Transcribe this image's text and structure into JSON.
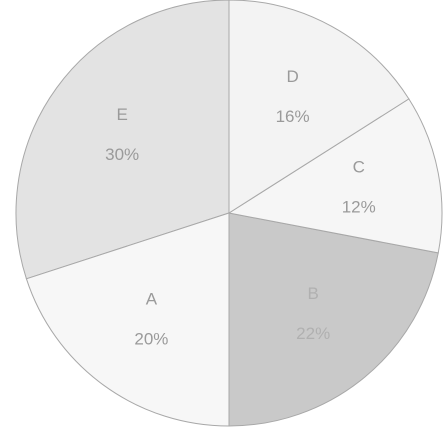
{
  "chart_data": {
    "type": "pie",
    "categories": [
      "E",
      "A",
      "B",
      "C",
      "D"
    ],
    "values": [
      30,
      20,
      22,
      12,
      16
    ],
    "value_labels": [
      "30%",
      "20%",
      "22%",
      "12%",
      "16%"
    ],
    "colors": [
      "#e3e3e3",
      "#f7f7f7",
      "#c9c9c9",
      "#f6f6f6",
      "#f3f3f3"
    ]
  }
}
